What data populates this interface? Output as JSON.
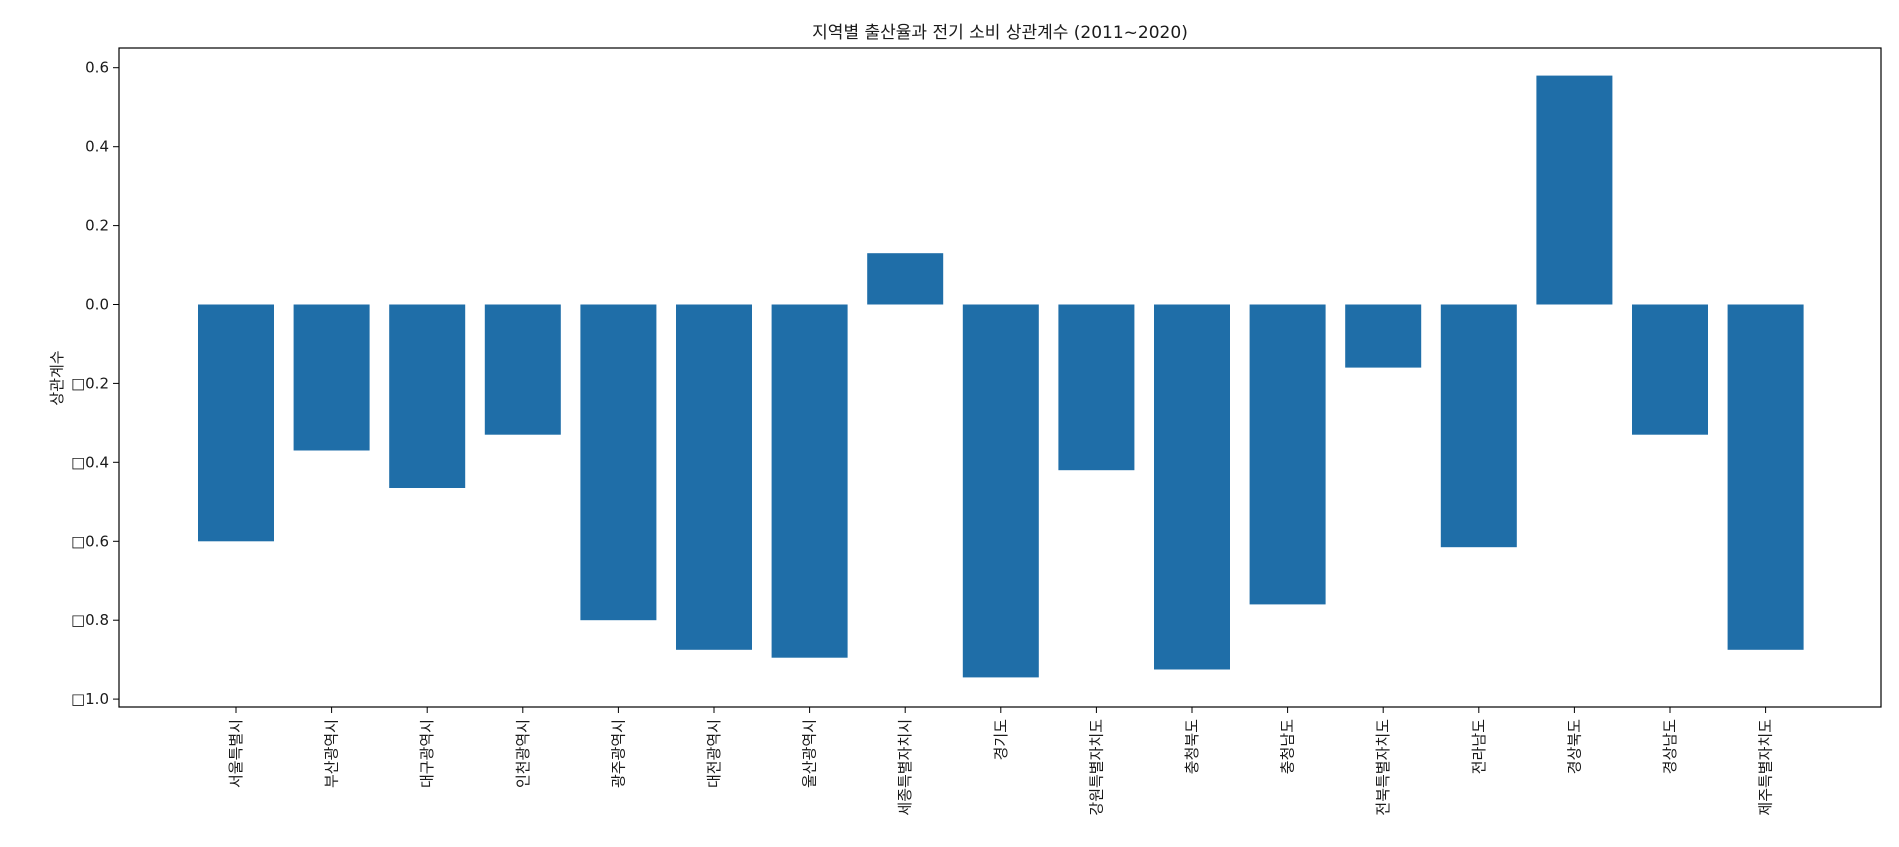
{
  "chart_data": {
    "type": "bar",
    "title": "지역별 출산율과 전기 소비 상관계수 (2011~2020)",
    "xlabel": "",
    "ylabel": "상관계수",
    "ylim": [
      -1.02,
      0.65
    ],
    "yticks": [
      0.6,
      0.4,
      0.2,
      0.0,
      -0.2,
      -0.4,
      -0.6,
      -0.8,
      -1.0
    ],
    "ytick_labels": [
      "0.6",
      "0.4",
      "0.2",
      "0.0",
      "□0.2",
      "□0.4",
      "□0.6",
      "□0.8",
      "□1.0"
    ],
    "grid": false,
    "bar_color": "#1f6ea8",
    "categories": [
      "서울특별시",
      "부산광역시",
      "대구광역시",
      "인천광역시",
      "광주광역시",
      "대전광역시",
      "울산광역시",
      "세종특별자치시",
      "경기도",
      "강원특별자치도",
      "충청북도",
      "충청남도",
      "전북특별자치도",
      "전라남도",
      "경상북도",
      "경상남도",
      "제주특별자치도"
    ],
    "values": [
      -0.6,
      -0.37,
      -0.465,
      -0.33,
      -0.8,
      -0.875,
      -0.895,
      0.13,
      -0.945,
      -0.42,
      -0.925,
      -0.76,
      -0.16,
      -0.615,
      0.58,
      -0.33,
      -0.875
    ]
  }
}
